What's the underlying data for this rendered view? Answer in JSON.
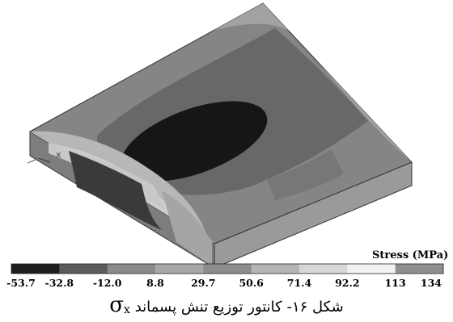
{
  "legend": {
    "title": "Stress (MPa)",
    "ticks": [
      "-53.7",
      "-32.8",
      "-12.0",
      "8.8",
      "29.7",
      "50.6",
      "71.4",
      "92.2",
      "113",
      "134"
    ],
    "colors": [
      "#1e1e1e",
      "#5b5b5b",
      "#8a8a8a",
      "#a8a8a8",
      "#8c8c8c",
      "#b5b5b5",
      "#d7d7d7",
      "#f2f2f2",
      "#8f8f8f"
    ]
  },
  "triad": {
    "axis": "x"
  },
  "caption": {
    "symbol": "σ",
    "subscript": "x",
    "text": "شکل ۱۶- کانتور توزیع تنش پسماند"
  }
}
